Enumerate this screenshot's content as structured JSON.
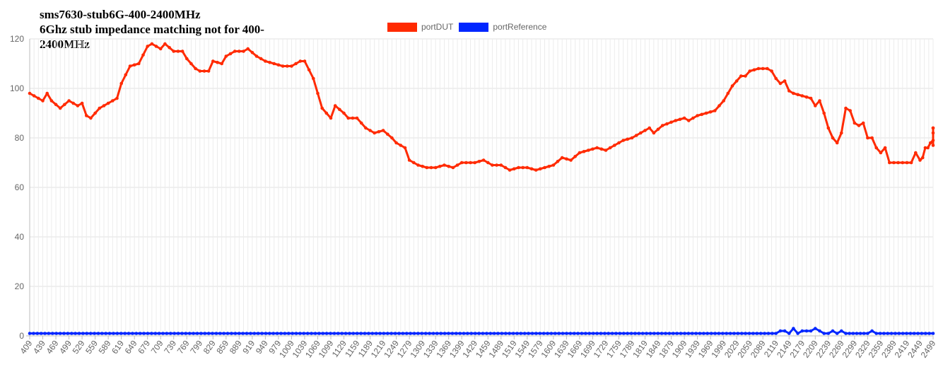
{
  "chart_title": {
    "line1": "sms7630-stub6G-400-2400MHz",
    "line2": "6Ghz stub impedance matching not for 400-2400MHz"
  },
  "legend": [
    {
      "label": "portDUT",
      "color": "#ff2a00"
    },
    {
      "label": "portReference",
      "color": "#0026ff"
    }
  ],
  "chart_data": {
    "type": "line",
    "title": "sms7630-stub6G-400-2400MHz 6Ghz stub impedance matching not for 400-2400MHz",
    "xlabel": "",
    "ylabel": "",
    "ylim": [
      0,
      120
    ],
    "yticks": [
      0,
      20,
      40,
      60,
      80,
      100,
      120
    ],
    "xlim": [
      409,
      2499
    ],
    "xticks": [
      409,
      439,
      469,
      499,
      529,
      559,
      589,
      619,
      649,
      679,
      709,
      739,
      769,
      799,
      829,
      859,
      889,
      919,
      949,
      979,
      1009,
      1039,
      1069,
      1099,
      1129,
      1159,
      1189,
      1219,
      1249,
      1279,
      1309,
      1339,
      1369,
      1399,
      1429,
      1459,
      1489,
      1519,
      1549,
      1579,
      1609,
      1639,
      1669,
      1699,
      1729,
      1759,
      1789,
      1819,
      1849,
      1879,
      1909,
      1939,
      1969,
      1999,
      2029,
      2059,
      2089,
      2119,
      2149,
      2179,
      2209,
      2239,
      2269,
      2299,
      2329,
      2359,
      2389,
      2419,
      2449,
      2499
    ],
    "grid": true,
    "legend_position": "top",
    "series": [
      {
        "name": "portDUT",
        "color": "#ff2a00",
        "points": [
          [
            409,
            98
          ],
          [
            429,
            96
          ],
          [
            439,
            95
          ],
          [
            449,
            98
          ],
          [
            459,
            95
          ],
          [
            479,
            92
          ],
          [
            499,
            95
          ],
          [
            519,
            93
          ],
          [
            529,
            94
          ],
          [
            539,
            89
          ],
          [
            549,
            88
          ],
          [
            569,
            92
          ],
          [
            589,
            94
          ],
          [
            609,
            96
          ],
          [
            619,
            102
          ],
          [
            639,
            109
          ],
          [
            659,
            110
          ],
          [
            679,
            117
          ],
          [
            689,
            118
          ],
          [
            709,
            116
          ],
          [
            719,
            118
          ],
          [
            739,
            115
          ],
          [
            759,
            115
          ],
          [
            769,
            112
          ],
          [
            789,
            108
          ],
          [
            799,
            107
          ],
          [
            819,
            107
          ],
          [
            829,
            111
          ],
          [
            849,
            110
          ],
          [
            859,
            113
          ],
          [
            879,
            115
          ],
          [
            899,
            115
          ],
          [
            909,
            116
          ],
          [
            929,
            113
          ],
          [
            949,
            111
          ],
          [
            969,
            110
          ],
          [
            989,
            109
          ],
          [
            1009,
            109
          ],
          [
            1029,
            111
          ],
          [
            1039,
            111
          ],
          [
            1059,
            104
          ],
          [
            1079,
            92
          ],
          [
            1099,
            88
          ],
          [
            1109,
            93
          ],
          [
            1129,
            90
          ],
          [
            1139,
            88
          ],
          [
            1159,
            88
          ],
          [
            1179,
            84
          ],
          [
            1199,
            82
          ],
          [
            1219,
            83
          ],
          [
            1239,
            80
          ],
          [
            1249,
            78
          ],
          [
            1269,
            76
          ],
          [
            1279,
            71
          ],
          [
            1299,
            69
          ],
          [
            1319,
            68
          ],
          [
            1339,
            68
          ],
          [
            1359,
            69
          ],
          [
            1379,
            68
          ],
          [
            1399,
            70
          ],
          [
            1429,
            70
          ],
          [
            1449,
            71
          ],
          [
            1469,
            69
          ],
          [
            1489,
            69
          ],
          [
            1509,
            67
          ],
          [
            1529,
            68
          ],
          [
            1549,
            68
          ],
          [
            1569,
            67
          ],
          [
            1589,
            68
          ],
          [
            1609,
            69
          ],
          [
            1629,
            72
          ],
          [
            1649,
            71
          ],
          [
            1669,
            74
          ],
          [
            1689,
            75
          ],
          [
            1709,
            76
          ],
          [
            1729,
            75
          ],
          [
            1749,
            77
          ],
          [
            1769,
            79
          ],
          [
            1789,
            80
          ],
          [
            1809,
            82
          ],
          [
            1829,
            84
          ],
          [
            1839,
            82
          ],
          [
            1859,
            85
          ],
          [
            1889,
            87
          ],
          [
            1909,
            88
          ],
          [
            1919,
            87
          ],
          [
            1939,
            89
          ],
          [
            1959,
            90
          ],
          [
            1979,
            91
          ],
          [
            1999,
            95
          ],
          [
            2019,
            101
          ],
          [
            2039,
            105
          ],
          [
            2049,
            105
          ],
          [
            2059,
            107
          ],
          [
            2079,
            108
          ],
          [
            2099,
            108
          ],
          [
            2109,
            107
          ],
          [
            2119,
            104
          ],
          [
            2129,
            102
          ],
          [
            2139,
            103
          ],
          [
            2149,
            99
          ],
          [
            2159,
            98
          ],
          [
            2179,
            97
          ],
          [
            2199,
            96
          ],
          [
            2209,
            93
          ],
          [
            2219,
            95
          ],
          [
            2229,
            90
          ],
          [
            2239,
            84
          ],
          [
            2249,
            80
          ],
          [
            2259,
            78
          ],
          [
            2269,
            82
          ],
          [
            2279,
            92
          ],
          [
            2289,
            91
          ],
          [
            2299,
            86
          ],
          [
            2309,
            85
          ],
          [
            2319,
            86
          ],
          [
            2329,
            80
          ],
          [
            2339,
            80
          ],
          [
            2349,
            76
          ],
          [
            2359,
            74
          ],
          [
            2369,
            76
          ],
          [
            2379,
            70
          ],
          [
            2409,
            70
          ],
          [
            2429,
            70
          ],
          [
            2439,
            74
          ],
          [
            2449,
            71
          ],
          [
            2459,
            72
          ],
          [
            2469,
            76
          ],
          [
            2479,
            76
          ],
          [
            2489,
            78
          ],
          [
            2499,
            79
          ],
          [
            2509,
            77
          ],
          [
            2519,
            82
          ],
          [
            2539,
            84
          ],
          [
            2559,
            84
          ]
        ]
      },
      {
        "name": "portReference",
        "color": "#0026ff",
        "points": [
          [
            409,
            1
          ],
          [
            2119,
            1
          ],
          [
            2129,
            2
          ],
          [
            2139,
            2
          ],
          [
            2149,
            1
          ],
          [
            2159,
            3
          ],
          [
            2169,
            1
          ],
          [
            2179,
            2
          ],
          [
            2199,
            2
          ],
          [
            2209,
            3
          ],
          [
            2219,
            2
          ],
          [
            2229,
            1
          ],
          [
            2239,
            1
          ],
          [
            2249,
            2
          ],
          [
            2259,
            1
          ],
          [
            2269,
            2
          ],
          [
            2279,
            1
          ],
          [
            2329,
            1
          ],
          [
            2339,
            2
          ],
          [
            2349,
            1
          ],
          [
            2559,
            1
          ]
        ]
      }
    ]
  }
}
